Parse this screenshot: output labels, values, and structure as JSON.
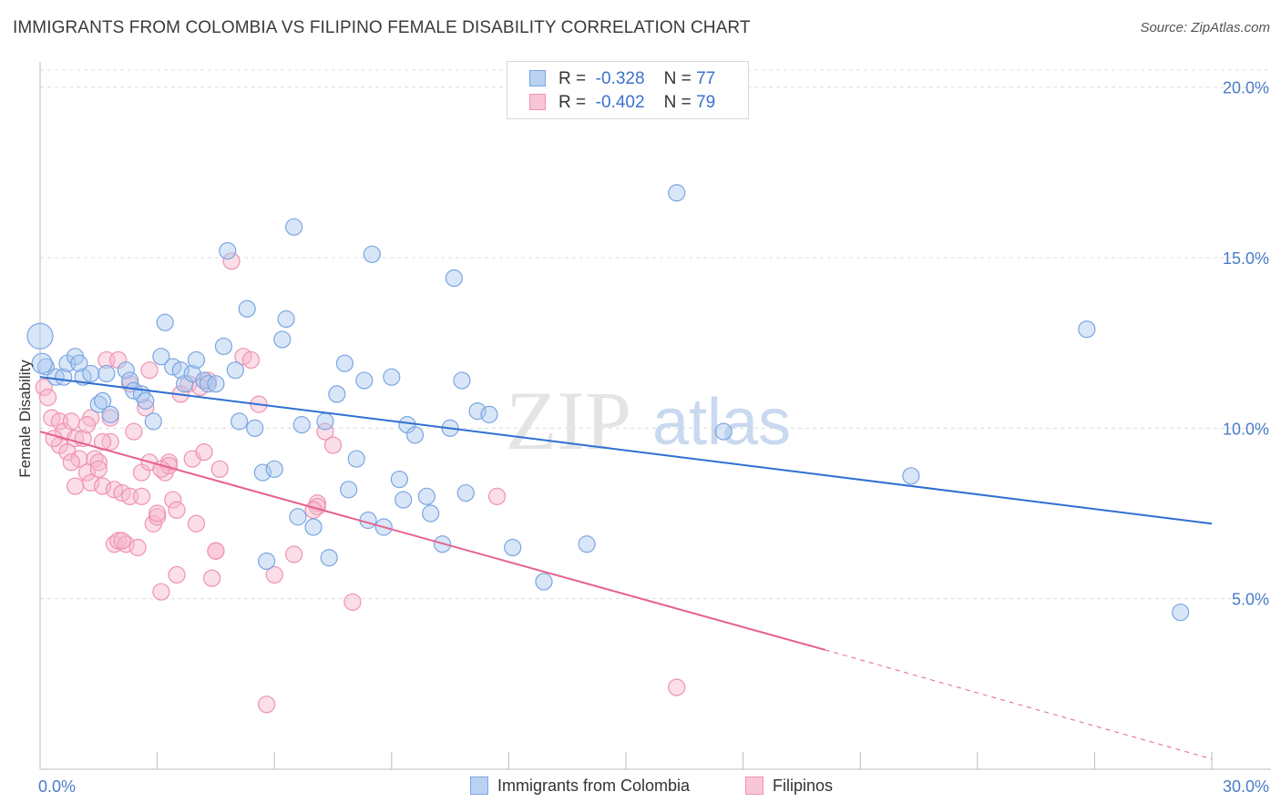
{
  "title": "IMMIGRANTS FROM COLOMBIA VS FILIPINO FEMALE DISABILITY CORRELATION CHART",
  "source": "Source: ZipAtlas.com",
  "watermark": {
    "zip": "ZIP",
    "atlas": "atlas"
  },
  "legend": {
    "rows": [
      {
        "r_label": "R =",
        "r_value": "-0.328",
        "n_label": "N =",
        "n_value": "77"
      },
      {
        "r_label": "R =",
        "r_value": "-0.402",
        "n_label": "N =",
        "n_value": "79"
      }
    ]
  },
  "bottom_legend": [
    "Immigrants from Colombia",
    "Filipinos"
  ],
  "chart_data": {
    "type": "scatter",
    "title": "IMMIGRANTS FROM COLOMBIA VS FILIPINO FEMALE DISABILITY CORRELATION CHART",
    "xlabel": "",
    "ylabel": "Female Disability",
    "xlim": [
      0,
      30
    ],
    "ylim": [
      0,
      20.5
    ],
    "x_tick_labels": [
      "0.0%",
      "30.0%"
    ],
    "y_ticks": [
      5,
      10,
      15,
      20
    ],
    "y_tick_labels": [
      "5.0%",
      "10.0%",
      "15.0%",
      "20.0%"
    ],
    "grid": true,
    "legend_position": "top-center",
    "colors": {
      "colombia_fill": "#a9c8f0",
      "colombia_stroke": "#7aa6e0",
      "colombia_line": "#2f6fd1",
      "filipino_fill": "#f7b6cb",
      "filipino_stroke": "#ef92b0",
      "filipino_line": "#e5628e",
      "axis_text": "#4a7cc9"
    },
    "series": [
      {
        "name": "Immigrants from Colombia",
        "r": -0.328,
        "n": 77,
        "trend": {
          "x0": 0,
          "y0": 11.5,
          "x1": 30,
          "y1": 7.2
        },
        "points": [
          [
            0.0,
            12.7,
            14
          ],
          [
            0.15,
            11.8,
            9
          ],
          [
            0.4,
            11.5,
            9
          ],
          [
            0.6,
            11.5,
            9
          ],
          [
            0.7,
            11.9,
            9
          ],
          [
            0.9,
            12.1,
            9
          ],
          [
            1.0,
            11.9,
            9
          ],
          [
            1.1,
            11.5,
            9
          ],
          [
            1.3,
            11.6,
            9
          ],
          [
            1.5,
            10.7,
            9
          ],
          [
            1.6,
            10.8,
            9
          ],
          [
            1.8,
            10.4,
            9
          ],
          [
            1.7,
            11.6,
            9
          ],
          [
            2.2,
            11.7,
            9
          ],
          [
            2.3,
            11.4,
            9
          ],
          [
            2.4,
            11.1,
            9
          ],
          [
            2.6,
            11.0,
            9
          ],
          [
            2.7,
            10.8,
            9
          ],
          [
            2.9,
            10.2,
            9
          ],
          [
            3.1,
            12.1,
            9
          ],
          [
            3.2,
            13.1,
            9
          ],
          [
            3.4,
            11.8,
            9
          ],
          [
            3.6,
            11.7,
            9
          ],
          [
            3.7,
            11.3,
            9
          ],
          [
            3.9,
            11.6,
            9
          ],
          [
            4.0,
            12.0,
            9
          ],
          [
            4.2,
            11.4,
            9
          ],
          [
            4.3,
            11.3,
            9
          ],
          [
            4.5,
            11.3,
            9
          ],
          [
            4.7,
            12.4,
            9
          ],
          [
            4.8,
            15.2,
            9
          ],
          [
            5.0,
            11.7,
            9
          ],
          [
            5.1,
            10.2,
            9
          ],
          [
            5.3,
            13.5,
            9
          ],
          [
            5.5,
            10.0,
            9
          ],
          [
            5.7,
            8.7,
            9
          ],
          [
            5.8,
            6.1,
            9
          ],
          [
            6.0,
            8.8,
            9
          ],
          [
            6.2,
            12.6,
            9
          ],
          [
            6.3,
            13.2,
            9
          ],
          [
            6.5,
            15.9,
            9
          ],
          [
            6.6,
            7.4,
            9
          ],
          [
            6.7,
            10.1,
            9
          ],
          [
            7.0,
            7.1,
            9
          ],
          [
            7.3,
            10.2,
            9
          ],
          [
            7.4,
            6.2,
            9
          ],
          [
            7.6,
            11.0,
            9
          ],
          [
            7.8,
            11.9,
            9
          ],
          [
            7.9,
            8.2,
            9
          ],
          [
            8.1,
            9.1,
            9
          ],
          [
            8.3,
            11.4,
            9
          ],
          [
            8.4,
            7.3,
            9
          ],
          [
            8.5,
            15.1,
            9
          ],
          [
            8.8,
            7.1,
            9
          ],
          [
            9.0,
            11.5,
            9
          ],
          [
            9.2,
            8.5,
            9
          ],
          [
            9.3,
            7.9,
            9
          ],
          [
            9.4,
            10.1,
            9
          ],
          [
            9.6,
            9.8,
            9
          ],
          [
            9.9,
            8.0,
            9
          ],
          [
            10.0,
            7.5,
            9
          ],
          [
            10.3,
            6.6,
            9
          ],
          [
            10.5,
            10.0,
            9
          ],
          [
            10.6,
            14.4,
            9
          ],
          [
            10.8,
            11.4,
            9
          ],
          [
            10.9,
            8.1,
            9
          ],
          [
            11.2,
            10.5,
            9
          ],
          [
            11.5,
            10.4,
            9
          ],
          [
            12.1,
            6.5,
            9
          ],
          [
            12.9,
            5.5,
            9
          ],
          [
            14.0,
            6.6,
            9
          ],
          [
            16.3,
            16.9,
            9
          ],
          [
            17.5,
            9.9,
            9
          ],
          [
            22.3,
            8.6,
            9
          ],
          [
            26.8,
            12.9,
            9
          ],
          [
            29.2,
            4.6,
            9
          ],
          [
            0.05,
            11.9,
            11
          ]
        ]
      },
      {
        "name": "Filipinos",
        "r": -0.402,
        "n": 79,
        "trend": {
          "x0": 0,
          "y0": 9.9,
          "x1": 20.1,
          "y1": 3.5,
          "dash_x1": 30,
          "dash_y1": 0.3
        },
        "points": [
          [
            0.1,
            11.2,
            9
          ],
          [
            0.2,
            10.9,
            9
          ],
          [
            0.3,
            10.3,
            9
          ],
          [
            0.5,
            10.2,
            9
          ],
          [
            0.5,
            9.5,
            9
          ],
          [
            0.6,
            9.9,
            9
          ],
          [
            0.7,
            9.3,
            9
          ],
          [
            0.8,
            10.2,
            9
          ],
          [
            0.9,
            9.7,
            9
          ],
          [
            0.9,
            8.3,
            9
          ],
          [
            1.0,
            9.1,
            9
          ],
          [
            1.1,
            9.7,
            9
          ],
          [
            1.2,
            8.7,
            9
          ],
          [
            1.3,
            10.3,
            9
          ],
          [
            1.3,
            8.4,
            9
          ],
          [
            1.4,
            9.1,
            9
          ],
          [
            1.5,
            9.0,
            9
          ],
          [
            1.5,
            8.8,
            9
          ],
          [
            1.6,
            8.3,
            9
          ],
          [
            1.7,
            12.0,
            9
          ],
          [
            1.8,
            10.3,
            9
          ],
          [
            1.8,
            9.6,
            9
          ],
          [
            1.9,
            8.2,
            9
          ],
          [
            1.9,
            6.6,
            9
          ],
          [
            2.0,
            12.0,
            9
          ],
          [
            2.0,
            6.7,
            9
          ],
          [
            2.1,
            8.1,
            9
          ],
          [
            2.2,
            6.6,
            9
          ],
          [
            2.3,
            8.0,
            9
          ],
          [
            2.3,
            11.3,
            9
          ],
          [
            2.4,
            9.9,
            9
          ],
          [
            2.5,
            6.5,
            9
          ],
          [
            2.6,
            8.0,
            9
          ],
          [
            2.6,
            8.7,
            9
          ],
          [
            2.7,
            10.6,
            9
          ],
          [
            2.8,
            9.0,
            9
          ],
          [
            2.8,
            11.7,
            9
          ],
          [
            2.9,
            7.2,
            9
          ],
          [
            3.0,
            7.4,
            9
          ],
          [
            3.0,
            7.5,
            9
          ],
          [
            3.1,
            5.2,
            9
          ],
          [
            3.2,
            8.7,
            9
          ],
          [
            3.3,
            9.0,
            9
          ],
          [
            3.3,
            8.9,
            9
          ],
          [
            3.4,
            7.9,
            9
          ],
          [
            3.5,
            7.6,
            9
          ],
          [
            3.5,
            5.7,
            9
          ],
          [
            3.6,
            11.0,
            9
          ],
          [
            3.8,
            11.3,
            9
          ],
          [
            3.9,
            9.1,
            9
          ],
          [
            4.0,
            7.2,
            9
          ],
          [
            4.1,
            11.2,
            9
          ],
          [
            4.2,
            9.3,
            9
          ],
          [
            4.3,
            11.4,
            9
          ],
          [
            4.4,
            5.6,
            9
          ],
          [
            4.5,
            6.4,
            9
          ],
          [
            4.5,
            6.4,
            9
          ],
          [
            4.6,
            8.8,
            9
          ],
          [
            4.9,
            14.9,
            9
          ],
          [
            5.2,
            12.1,
            9
          ],
          [
            5.4,
            12.0,
            9
          ],
          [
            5.6,
            10.7,
            9
          ],
          [
            5.8,
            1.9,
            9
          ],
          [
            6.0,
            5.7,
            9
          ],
          [
            6.5,
            6.3,
            9
          ],
          [
            7.1,
            7.8,
            9
          ],
          [
            7.3,
            9.9,
            9
          ],
          [
            7.5,
            9.5,
            9
          ],
          [
            7.1,
            7.7,
            9
          ],
          [
            7.0,
            7.6,
            9
          ],
          [
            8.0,
            4.9,
            9
          ],
          [
            11.7,
            8.0,
            9
          ],
          [
            16.3,
            2.4,
            9
          ],
          [
            0.35,
            9.7,
            9
          ],
          [
            1.2,
            10.1,
            9
          ],
          [
            2.1,
            6.7,
            9
          ],
          [
            3.1,
            8.8,
            9
          ],
          [
            0.8,
            9.0,
            9
          ],
          [
            1.6,
            9.6,
            9
          ]
        ]
      }
    ]
  }
}
